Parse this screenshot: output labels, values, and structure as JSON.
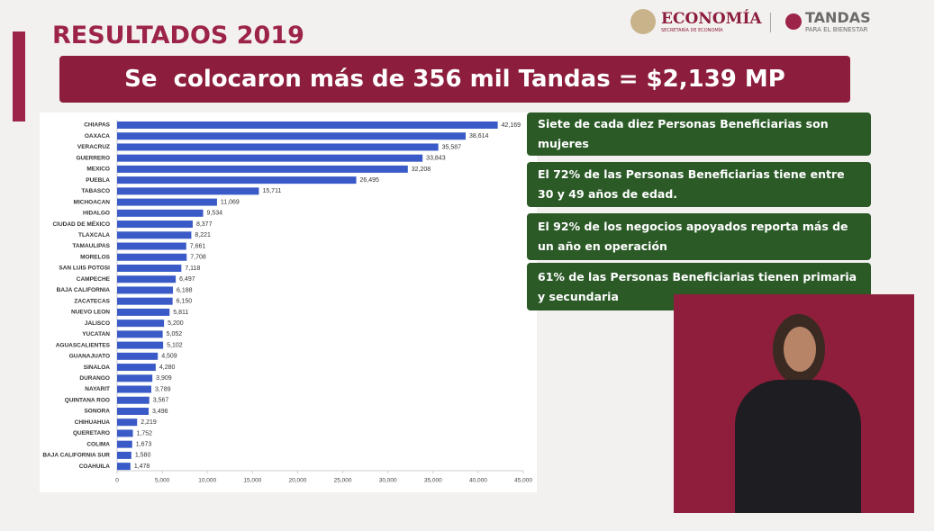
{
  "header": {
    "title": "RESULTADOS 2019",
    "banner": "Se  colocaron más de 356 mil Tandas = $2,139 MP",
    "logo_economia": "ECONOMÍA",
    "logo_economia_sub": "SECRETARÍA DE ECONOMÍA",
    "logo_tandas": "TANDAS",
    "logo_tandas_sub": "PARA EL BIENESTAR"
  },
  "facts": [
    "Siete de cada diez Personas Beneficiarias son mujeres",
    "El 72% de las Personas Beneficiarias tiene entre 30 y 49 años de edad.",
    "El 92% de los negocios apoyados reporta más de un año en operación",
    "61% de las Personas Beneficiarias tienen primaria y secundaria"
  ],
  "chart_data": {
    "type": "hbar",
    "color": "#3a5bc7",
    "categories": [
      "CHIAPAS",
      "OAXACA",
      "VERACRUZ",
      "GUERRERO",
      "MEXICO",
      "PUEBLA",
      "TABASCO",
      "MICHOACAN",
      "HIDALGO",
      "CIUDAD DE MÉXICO",
      "TLAXCALA",
      "TAMAULIPAS",
      "MORELOS",
      "SAN LUIS POTOSI",
      "CAMPECHE",
      "BAJA CALIFORNIA",
      "ZACATECAS",
      "NUEVO LEON",
      "JALISCO",
      "YUCATAN",
      "AGUASCALIENTES",
      "GUANAJUATO",
      "SINALOA",
      "DURANGO",
      "NAYARIT",
      "QUINTANA ROO",
      "SONORA",
      "CHIHUAHUA",
      "QUERETARO",
      "COLIMA",
      "BAJA CALIFORNIA SUR",
      "COAHUILA"
    ],
    "values": [
      42169,
      38614,
      35587,
      33843,
      32208,
      26495,
      15711,
      11069,
      9534,
      8377,
      8221,
      7661,
      7708,
      7118,
      6497,
      6188,
      6150,
      5811,
      5200,
      5052,
      5102,
      4509,
      4280,
      3909,
      3789,
      3567,
      3496,
      2219,
      1752,
      1673,
      1580,
      1478
    ],
    "value_labels": [
      "42,169",
      "38,614",
      "35,587",
      "33,843",
      "32,208",
      "26,495",
      "15,711",
      "11,069",
      "9,534",
      "8,377",
      "8,221",
      "7,661",
      "7,708",
      "7,118",
      "6,497",
      "6,188",
      "6,150",
      "5,811",
      "5,200",
      "5,052",
      "5,102",
      "4,509",
      "4,280",
      "3,909",
      "3,789",
      "3,567",
      "3,496",
      "2,219",
      "1,752",
      "1,673",
      "1,580",
      "1,478"
    ],
    "xlim": [
      0,
      45000
    ],
    "xticks": [
      0,
      {
        "value": 5000,
        "label": "5,000"
      },
      {
        "value": 10000,
        "label": "10,000"
      },
      {
        "value": 15000,
        "label": "15,000"
      },
      {
        "value": 20000,
        "label": "20,000"
      },
      {
        "value": 25000,
        "label": "25,000"
      },
      {
        "value": 30000,
        "label": "30,000"
      },
      {
        "value": 35000,
        "label": "35,000"
      },
      {
        "value": 40000,
        "label": "40,000"
      },
      {
        "value": 45000,
        "label": "45,000"
      }
    ],
    "grid": false
  }
}
